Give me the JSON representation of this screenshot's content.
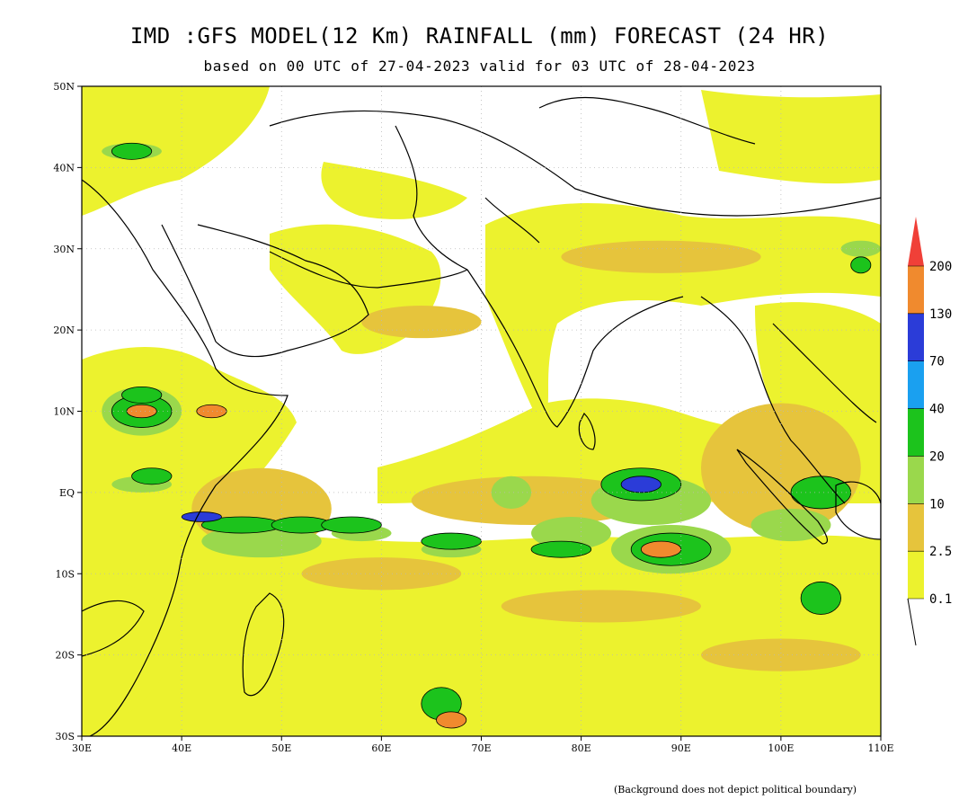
{
  "title": "IMD :GFS MODEL(12 Km) RAINFALL (mm) FORECAST (24 HR)",
  "subtitle": "based on 00 UTC of 27-04-2023 valid for 03 UTC of 28-04-2023",
  "footnote": "(Background does not depict political boundary)",
  "map": {
    "lon_range": [
      30,
      110
    ],
    "lat_range": [
      -30,
      50
    ],
    "lon_ticks": [
      "30E",
      "40E",
      "50E",
      "60E",
      "70E",
      "80E",
      "90E",
      "100E",
      "110E"
    ],
    "lat_ticks": [
      "50N",
      "40N",
      "30N",
      "20N",
      "10N",
      "EQ",
      "10S",
      "20S",
      "30S"
    ],
    "grid": "dotted",
    "background_color": "#ffffff"
  },
  "colorbar": {
    "levels": [
      "0.1",
      "2.5",
      "10",
      "20",
      "40",
      "70",
      "130",
      "200"
    ],
    "colors": [
      "#ecf22e",
      "#e6c43c",
      "#9ad84c",
      "#1cc31c",
      "#1aa0f0",
      "#2b3cd8",
      "#f08a2e",
      "#f04038"
    ]
  },
  "rain_areas": [
    {
      "cat": 1,
      "lon": 100,
      "lat": 3,
      "rx": 8,
      "ry": 8
    },
    {
      "cat": 1,
      "lon": 75,
      "lat": -1,
      "rx": 12,
      "ry": 3
    },
    {
      "cat": 1,
      "lon": 48,
      "lat": -2,
      "rx": 7,
      "ry": 5
    },
    {
      "cat": 1,
      "lon": 60,
      "lat": -10,
      "rx": 8,
      "ry": 2
    },
    {
      "cat": 1,
      "lon": 82,
      "lat": -14,
      "rx": 10,
      "ry": 2
    },
    {
      "cat": 1,
      "lon": 64,
      "lat": 21,
      "rx": 6,
      "ry": 2
    },
    {
      "cat": 1,
      "lon": 88,
      "lat": 29,
      "rx": 10,
      "ry": 2
    },
    {
      "cat": 1,
      "lon": 100,
      "lat": -20,
      "rx": 8,
      "ry": 2
    },
    {
      "cat": 2,
      "lon": 35,
      "lat": 42,
      "rx": 3,
      "ry": 1
    },
    {
      "cat": 2,
      "lon": 36,
      "lat": 10,
      "rx": 4,
      "ry": 3
    },
    {
      "cat": 2,
      "lon": 48,
      "lat": -6,
      "rx": 6,
      "ry": 2
    },
    {
      "cat": 2,
      "lon": 58,
      "lat": -5,
      "rx": 3,
      "ry": 1
    },
    {
      "cat": 2,
      "lon": 67,
      "lat": -7,
      "rx": 3,
      "ry": 1
    },
    {
      "cat": 2,
      "lon": 79,
      "lat": -5,
      "rx": 4,
      "ry": 2
    },
    {
      "cat": 2,
      "lon": 87,
      "lat": -1,
      "rx": 6,
      "ry": 3
    },
    {
      "cat": 2,
      "lon": 89,
      "lat": -7,
      "rx": 6,
      "ry": 3
    },
    {
      "cat": 2,
      "lon": 101,
      "lat": -4,
      "rx": 4,
      "ry": 2
    },
    {
      "cat": 2,
      "lon": 108,
      "lat": 30,
      "rx": 2,
      "ry": 1
    },
    {
      "cat": 2,
      "lon": 36,
      "lat": 1,
      "rx": 3,
      "ry": 1
    },
    {
      "cat": 2,
      "lon": 73,
      "lat": 0,
      "rx": 2,
      "ry": 2
    },
    {
      "cat": 3,
      "lon": 35,
      "lat": 42,
      "rx": 2,
      "ry": 1
    },
    {
      "cat": 3,
      "lon": 36,
      "lat": 10,
      "rx": 3,
      "ry": 2
    },
    {
      "cat": 3,
      "lon": 46,
      "lat": -4,
      "rx": 4,
      "ry": 1
    },
    {
      "cat": 3,
      "lon": 52,
      "lat": -4,
      "rx": 3,
      "ry": 1
    },
    {
      "cat": 3,
      "lon": 57,
      "lat": -4,
      "rx": 3,
      "ry": 1
    },
    {
      "cat": 3,
      "lon": 67,
      "lat": -6,
      "rx": 3,
      "ry": 1
    },
    {
      "cat": 3,
      "lon": 78,
      "lat": -7,
      "rx": 3,
      "ry": 1
    },
    {
      "cat": 3,
      "lon": 86,
      "lat": 1,
      "rx": 4,
      "ry": 2
    },
    {
      "cat": 3,
      "lon": 89,
      "lat": -7,
      "rx": 4,
      "ry": 2
    },
    {
      "cat": 3,
      "lon": 104,
      "lat": 0,
      "rx": 3,
      "ry": 2
    },
    {
      "cat": 3,
      "lon": 104,
      "lat": -13,
      "rx": 2,
      "ry": 2
    },
    {
      "cat": 3,
      "lon": 108,
      "lat": 28,
      "rx": 1,
      "ry": 1
    },
    {
      "cat": 3,
      "lon": 37,
      "lat": 2,
      "rx": 2,
      "ry": 1
    },
    {
      "cat": 3,
      "lon": 36,
      "lat": 12,
      "rx": 2,
      "ry": 1
    },
    {
      "cat": 3,
      "lon": 66,
      "lat": -26,
      "rx": 2,
      "ry": 2
    },
    {
      "cat": 5,
      "lon": 86,
      "lat": 1,
      "rx": 2,
      "ry": 1
    },
    {
      "cat": 5,
      "lon": 42,
      "lat": -3,
      "rx": 2,
      "ry": 0.6
    },
    {
      "cat": 6,
      "lon": 36,
      "lat": 10,
      "rx": 1.5,
      "ry": 0.8
    },
    {
      "cat": 6,
      "lon": 43,
      "lat": 10,
      "rx": 1.5,
      "ry": 0.8
    },
    {
      "cat": 6,
      "lon": 88,
      "lat": -7,
      "rx": 2,
      "ry": 1
    },
    {
      "cat": 6,
      "lon": 67,
      "lat": -28,
      "rx": 1.5,
      "ry": 1
    }
  ]
}
